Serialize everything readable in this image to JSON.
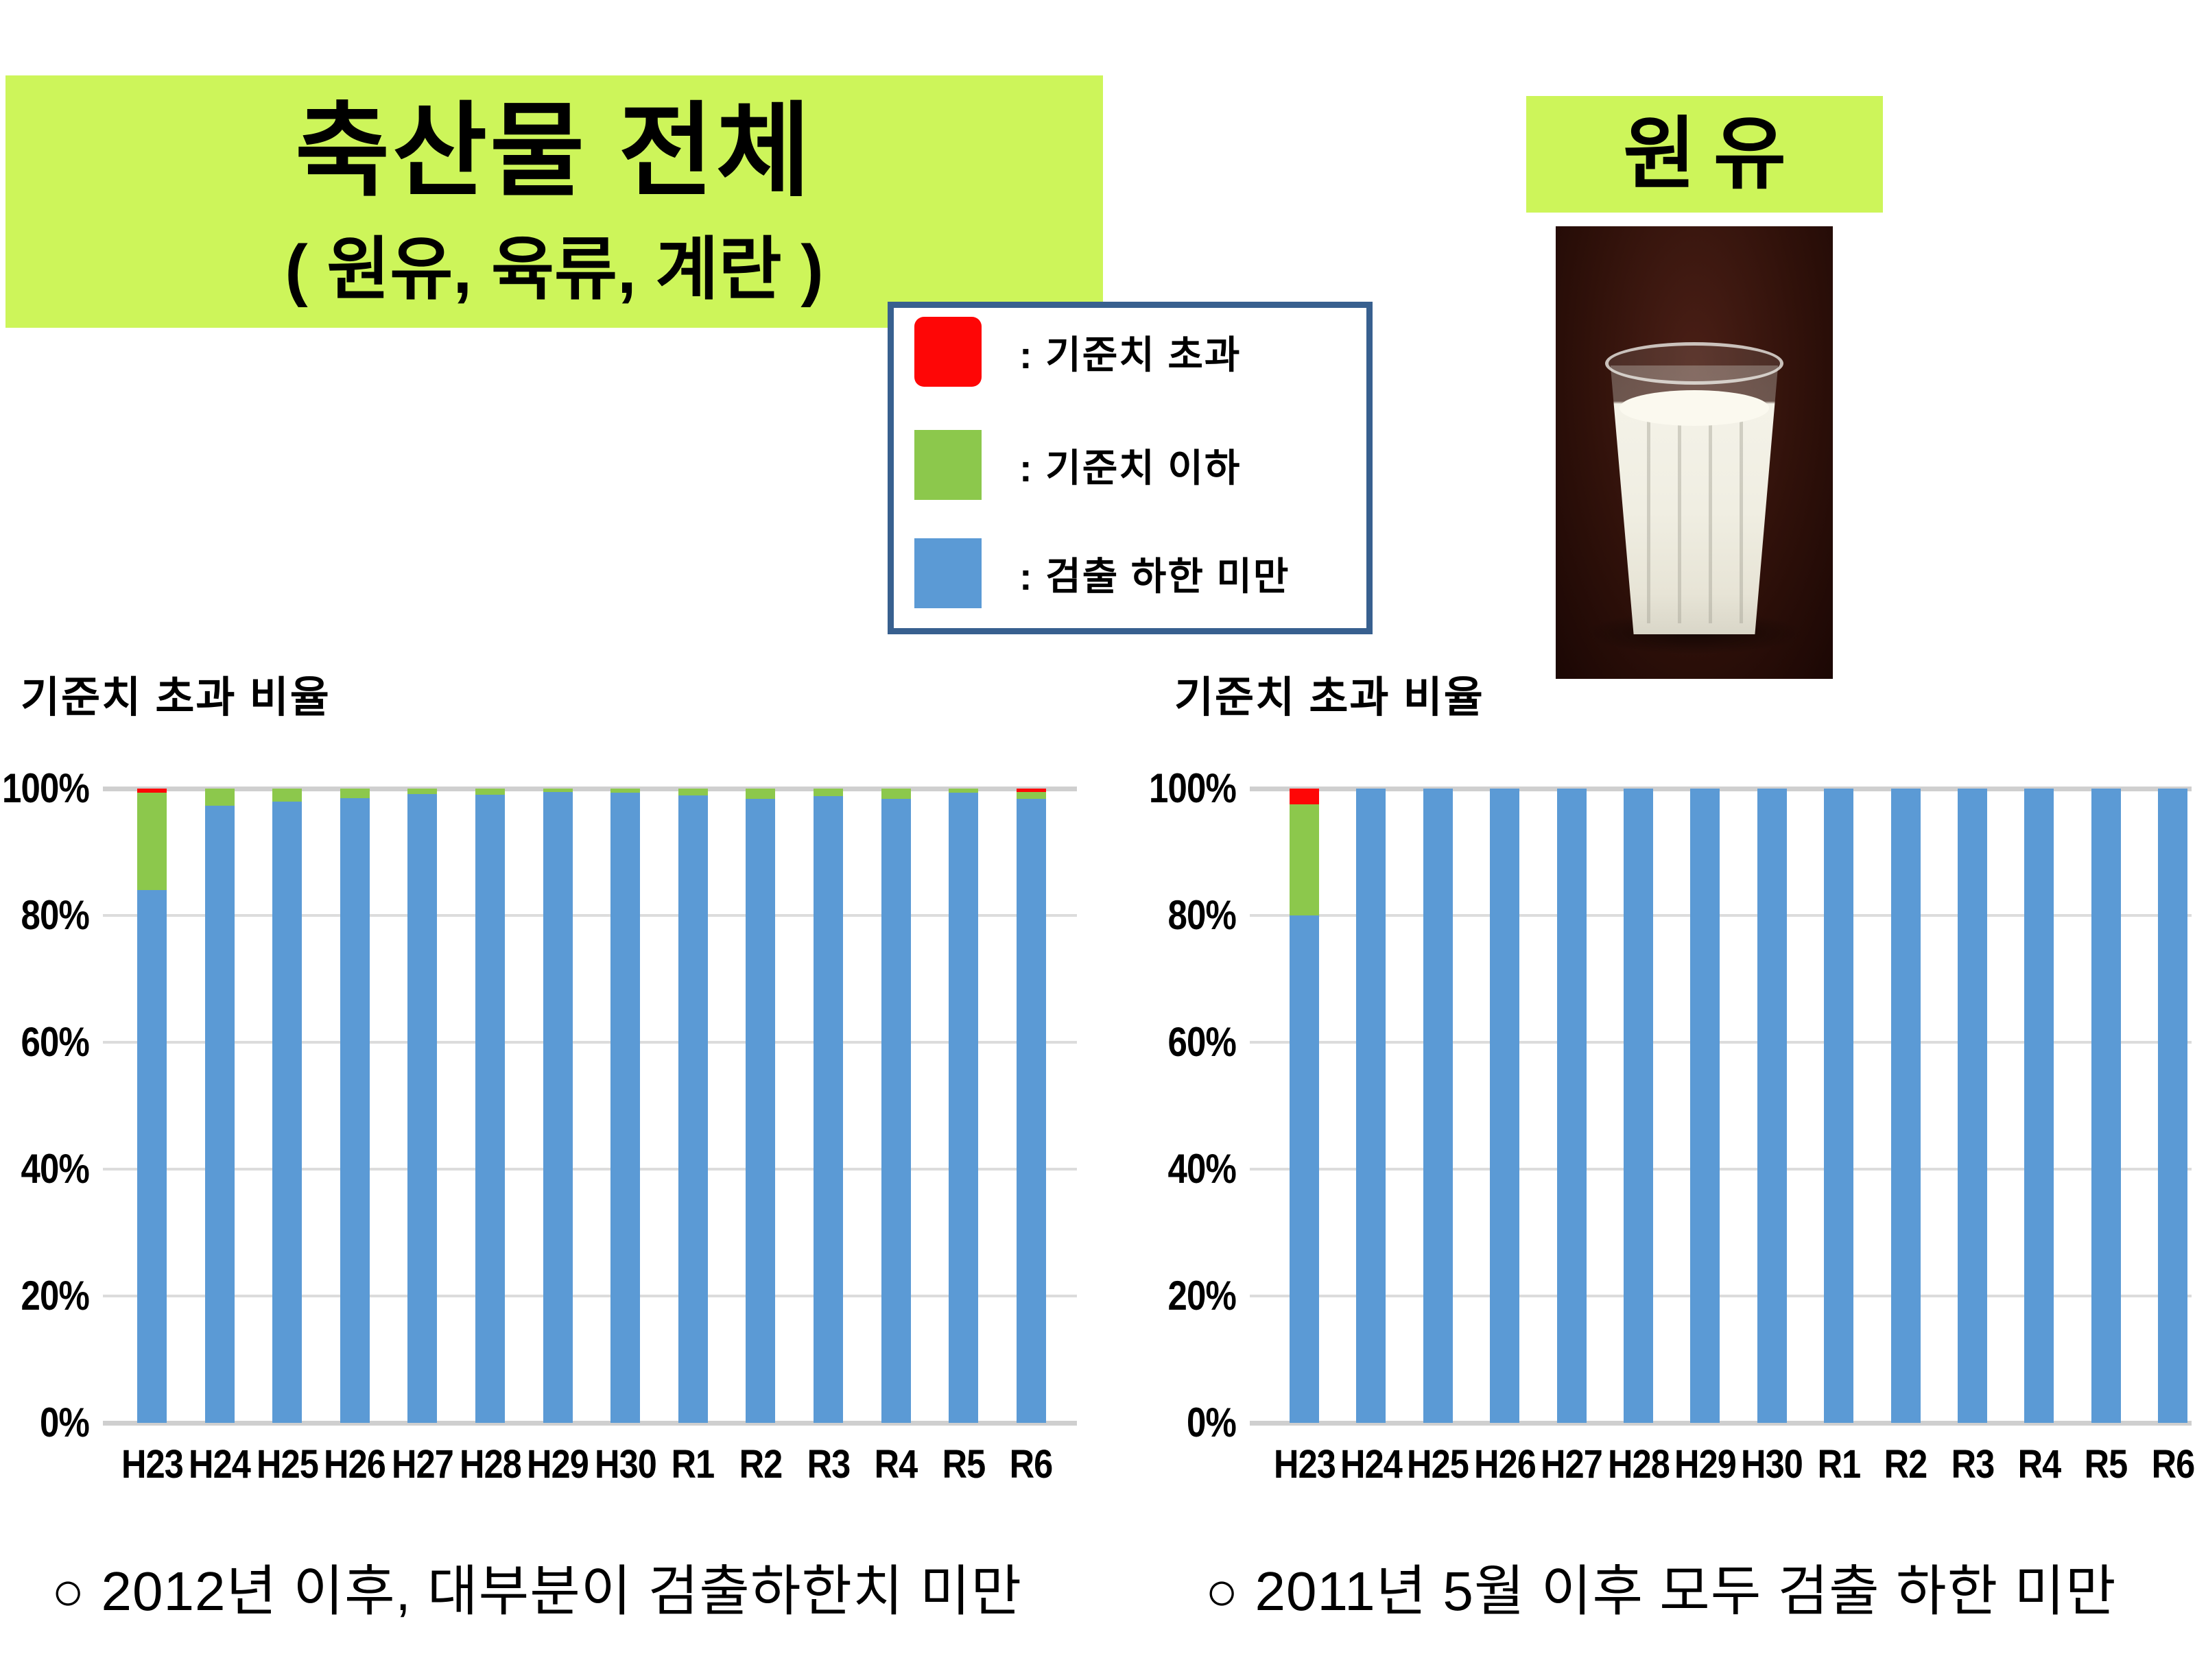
{
  "slide": {
    "title_banner": {
      "title": "축산물 전체",
      "subtitle": "( 원유, 육류, 계란 )"
    },
    "right_banner": {
      "title": "원유"
    },
    "milk_photo": {
      "description": "glass-of-milk-photo"
    },
    "legend": {
      "items": [
        {
          "key": "red",
          "color": "#FE0606",
          "label": ": 기준치 초과"
        },
        {
          "key": "green",
          "color": "#8CC84C",
          "label": ": 기준치 이하"
        },
        {
          "key": "blue",
          "color": "#5B9AD5",
          "label": ": 검출 하한 미만"
        }
      ]
    },
    "bullets": {
      "left": "○ 2012년 이후, 대부분이 검출하한치 미만",
      "right": "○ 2011년 5월 이후 모두 검출 하한 미만"
    },
    "colors": {
      "banner_green": "#CDF55A",
      "legend_border": "#38608F",
      "bar_blue": "#5B9AD5",
      "bar_green": "#8CC84C",
      "bar_red": "#FE0606",
      "gridline": "#DCDCDC"
    }
  },
  "chart_data": [
    {
      "type": "bar",
      "stacked": true,
      "stack_order": "bottom-to-top",
      "title": "기준치 초과 비율",
      "subject": "축산물 전체 (원유, 육류, 계란)",
      "categories": [
        "H23",
        "H24",
        "H25",
        "H26",
        "H27",
        "H28",
        "H29",
        "H30",
        "R1",
        "R2",
        "R3",
        "R4",
        "R5",
        "R6"
      ],
      "series": [
        {
          "key": "blue",
          "name": "검출 하한 미만",
          "color": "#5B9AD5",
          "values": [
            84.0,
            97.3,
            98.0,
            98.5,
            99.1,
            99.0,
            99.5,
            99.3,
            98.9,
            98.4,
            98.8,
            98.4,
            99.4,
            98.4
          ]
        },
        {
          "key": "green",
          "name": "기준치 이하",
          "color": "#8CC84C",
          "values": [
            15.4,
            2.7,
            2.0,
            1.5,
            0.9,
            1.0,
            0.5,
            0.7,
            1.1,
            1.6,
            1.2,
            1.6,
            0.6,
            1.1
          ]
        },
        {
          "key": "red",
          "name": "기준치 초과",
          "color": "#FE0606",
          "values": [
            0.6,
            0,
            0,
            0,
            0,
            0,
            0,
            0,
            0,
            0,
            0,
            0,
            0,
            0.5
          ]
        }
      ],
      "ylim": [
        0,
        100
      ],
      "yticks": [
        "100%",
        "80%",
        "60%",
        "40%",
        "20%",
        "0%"
      ],
      "ytick_values": [
        100,
        80,
        60,
        40,
        20,
        0
      ],
      "grid": true,
      "legend_position": "shared-slide-legend"
    },
    {
      "type": "bar",
      "stacked": true,
      "stack_order": "bottom-to-top",
      "title": "기준치 초과 비율",
      "subject": "원유",
      "categories": [
        "H23",
        "H24",
        "H25",
        "H26",
        "H27",
        "H28",
        "H29",
        "H30",
        "R1",
        "R2",
        "R3",
        "R4",
        "R5",
        "R6"
      ],
      "series": [
        {
          "key": "blue",
          "name": "검출 하한 미만",
          "color": "#5B9AD5",
          "values": [
            80.0,
            100,
            100,
            100,
            100,
            100,
            100,
            100,
            100,
            100,
            100,
            100,
            100,
            100
          ]
        },
        {
          "key": "green",
          "name": "기준치 이하",
          "color": "#8CC84C",
          "values": [
            17.5,
            0,
            0,
            0,
            0,
            0,
            0,
            0,
            0,
            0,
            0,
            0,
            0,
            0
          ]
        },
        {
          "key": "red",
          "name": "기준치 초과",
          "color": "#FE0606",
          "values": [
            2.5,
            0,
            0,
            0,
            0,
            0,
            0,
            0,
            0,
            0,
            0,
            0,
            0,
            0
          ]
        }
      ],
      "ylim": [
        0,
        100
      ],
      "yticks": [
        "100%",
        "80%",
        "60%",
        "40%",
        "20%",
        "0%"
      ],
      "ytick_values": [
        100,
        80,
        60,
        40,
        20,
        0
      ],
      "grid": true,
      "legend_position": "shared-slide-legend"
    }
  ]
}
